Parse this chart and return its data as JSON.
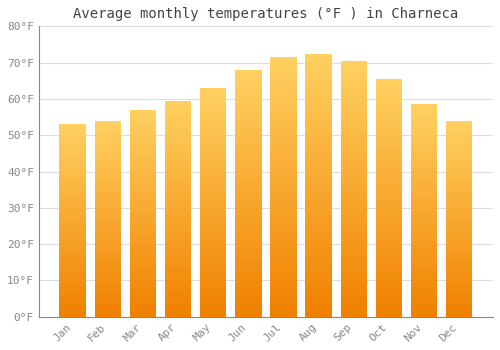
{
  "title": "Average monthly temperatures (°F ) in Charneca",
  "months": [
    "Jan",
    "Feb",
    "Mar",
    "Apr",
    "May",
    "Jun",
    "Jul",
    "Aug",
    "Sep",
    "Oct",
    "Nov",
    "Dec"
  ],
  "values": [
    53,
    54,
    57,
    59.5,
    63,
    68,
    71.5,
    72.5,
    70.5,
    65.5,
    58.5,
    54
  ],
  "bar_color": "#FFA500",
  "bar_color_light": "#FFD060",
  "bar_color_dark": "#F08000",
  "background_color": "#FFFFFF",
  "plot_bg_color": "#FFFFFF",
  "grid_color": "#DDDDDD",
  "ylim": [
    0,
    80
  ],
  "yticks": [
    0,
    10,
    20,
    30,
    40,
    50,
    60,
    70,
    80
  ],
  "ytick_labels": [
    "0°F",
    "10°F",
    "20°F",
    "30°F",
    "40°F",
    "50°F",
    "60°F",
    "70°F",
    "80°F"
  ],
  "title_fontsize": 10,
  "tick_fontsize": 8,
  "font_family": "monospace",
  "tick_color": "#888888",
  "bar_width": 0.75,
  "n_gradient_steps": 50
}
